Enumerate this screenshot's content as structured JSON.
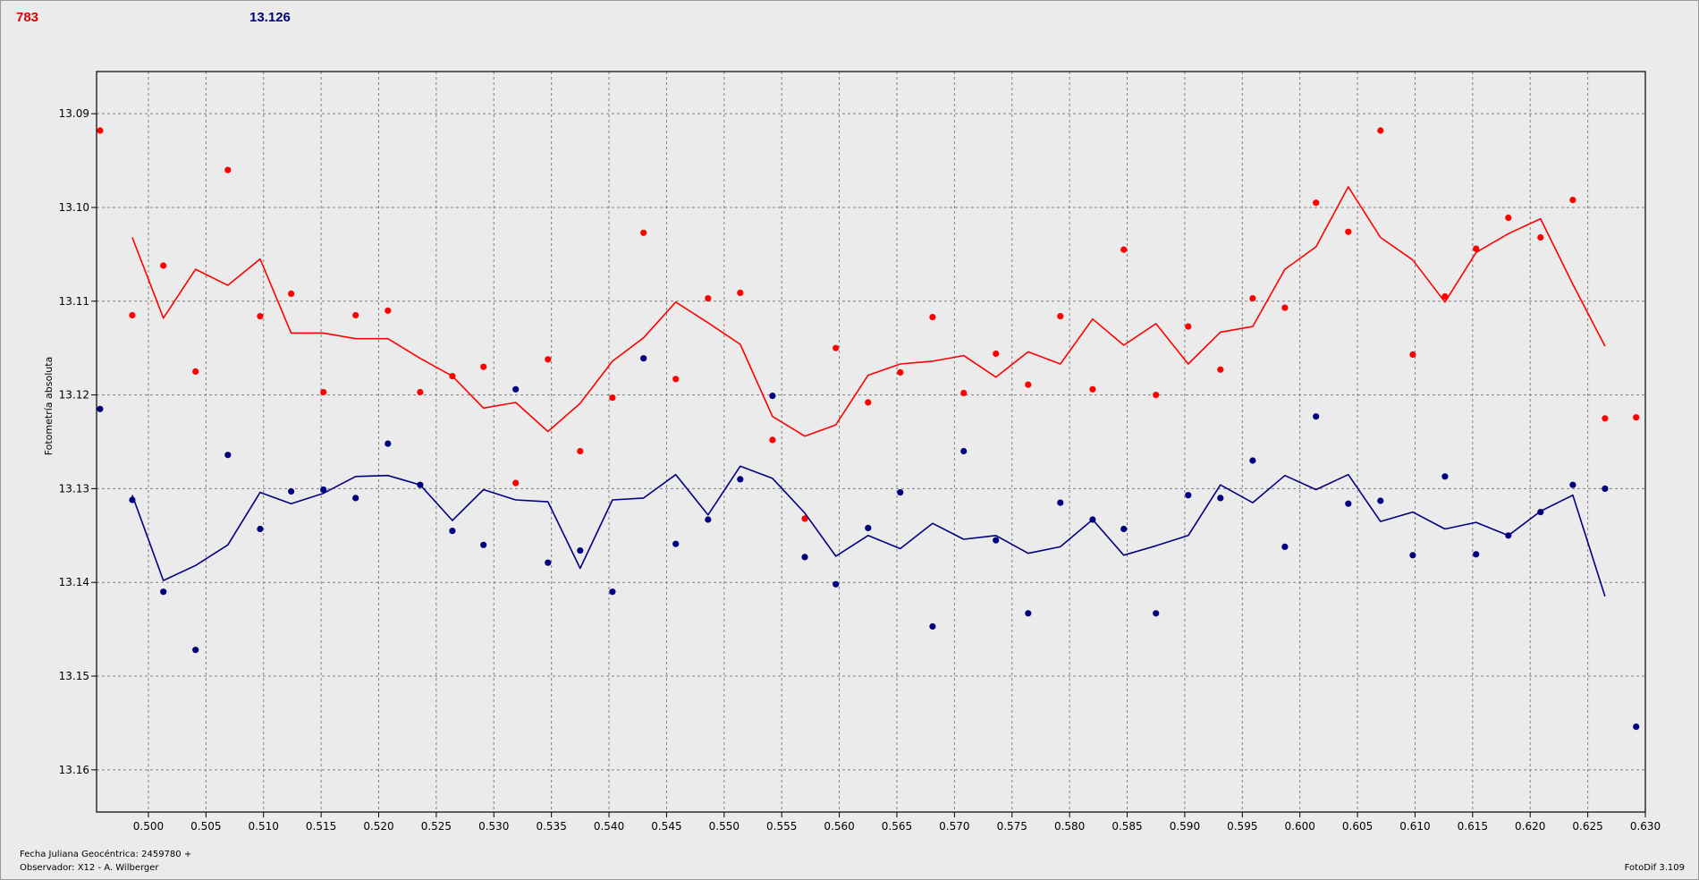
{
  "header": {
    "red_value": "783",
    "blue_value": "13.126"
  },
  "footer": {
    "jd_label": "Fecha Juliana Geocéntrica: 2459780 +",
    "observer": "Observador: X12 - A. Wilberger",
    "version": "FotoDif 3.109"
  },
  "colors": {
    "red": "#ff0000",
    "blue": "#000080",
    "grid": "#808080",
    "plot_bg": "#ebebeb"
  },
  "chart_data": {
    "type": "scatter",
    "ylabel": "Fotometría absoluta",
    "xlim": [
      0.4955,
      0.63
    ],
    "ylim": [
      13.1645,
      13.0855
    ],
    "y_inverted": true,
    "grid": true,
    "x_ticks": [
      "0.500",
      "0.505",
      "0.510",
      "0.515",
      "0.520",
      "0.525",
      "0.530",
      "0.535",
      "0.540",
      "0.545",
      "0.550",
      "0.555",
      "0.560",
      "0.565",
      "0.570",
      "0.575",
      "0.580",
      "0.585",
      "0.590",
      "0.595",
      "0.600",
      "0.605",
      "0.610",
      "0.615",
      "0.620",
      "0.625",
      "0.630"
    ],
    "y_ticks": [
      "13.09",
      "13.10",
      "13.11",
      "13.12",
      "13.13",
      "13.14",
      "13.15",
      "13.16"
    ],
    "series": [
      {
        "color": "#ff0000",
        "points": [
          [
            0.4958,
            13.0918
          ],
          [
            0.4986,
            13.1115
          ],
          [
            0.5013,
            13.1062
          ],
          [
            0.5041,
            13.1175
          ],
          [
            0.5069,
            13.096
          ],
          [
            0.5097,
            13.1116
          ],
          [
            0.5124,
            13.1092
          ],
          [
            0.5152,
            13.1197
          ],
          [
            0.518,
            13.1115
          ],
          [
            0.5208,
            13.111
          ],
          [
            0.5236,
            13.1197
          ],
          [
            0.5264,
            13.118
          ],
          [
            0.5291,
            13.117
          ],
          [
            0.5319,
            13.1294
          ],
          [
            0.5347,
            13.1162
          ],
          [
            0.5375,
            13.126
          ],
          [
            0.5403,
            13.1203
          ],
          [
            0.543,
            13.1027
          ],
          [
            0.5458,
            13.1183
          ],
          [
            0.5486,
            13.1097
          ],
          [
            0.5514,
            13.1091
          ],
          [
            0.5542,
            13.1248
          ],
          [
            0.557,
            13.1332
          ],
          [
            0.5597,
            13.115
          ],
          [
            0.5625,
            13.1208
          ],
          [
            0.5653,
            13.1176
          ],
          [
            0.5681,
            13.1117
          ],
          [
            0.5708,
            13.1198
          ],
          [
            0.5736,
            13.1156
          ],
          [
            0.5764,
            13.1189
          ],
          [
            0.5792,
            13.1116
          ],
          [
            0.582,
            13.1194
          ],
          [
            0.5847,
            13.1045
          ],
          [
            0.5875,
            13.12
          ],
          [
            0.5903,
            13.1127
          ],
          [
            0.5931,
            13.1173
          ],
          [
            0.5959,
            13.1097
          ],
          [
            0.5987,
            13.1107
          ],
          [
            0.6014,
            13.0995
          ],
          [
            0.6042,
            13.1026
          ],
          [
            0.607,
            13.0918
          ],
          [
            0.6098,
            13.1157
          ],
          [
            0.6126,
            13.1095
          ],
          [
            0.6153,
            13.1044
          ],
          [
            0.6181,
            13.1011
          ],
          [
            0.6209,
            13.1032
          ],
          [
            0.6237,
            13.0992
          ],
          [
            0.6265,
            13.1225
          ],
          [
            0.6292,
            13.1224
          ]
        ],
        "line": [
          [
            0.4986,
            13.1032
          ],
          [
            0.5013,
            13.1118
          ],
          [
            0.5041,
            13.1066
          ],
          [
            0.5069,
            13.1083
          ],
          [
            0.5097,
            13.1055
          ],
          [
            0.5124,
            13.1134
          ],
          [
            0.5152,
            13.1134
          ],
          [
            0.518,
            13.114
          ],
          [
            0.5208,
            13.114
          ],
          [
            0.5236,
            13.1161
          ],
          [
            0.5264,
            13.118
          ],
          [
            0.5291,
            13.1214
          ],
          [
            0.5319,
            13.1208
          ],
          [
            0.5347,
            13.1239
          ],
          [
            0.5375,
            13.1209
          ],
          [
            0.5403,
            13.1164
          ],
          [
            0.543,
            13.1139
          ],
          [
            0.5458,
            13.1101
          ],
          [
            0.5486,
            13.1123
          ],
          [
            0.5514,
            13.1146
          ],
          [
            0.5542,
            13.1223
          ],
          [
            0.557,
            13.1244
          ],
          [
            0.5597,
            13.1232
          ],
          [
            0.5625,
            13.1179
          ],
          [
            0.5653,
            13.1167
          ],
          [
            0.5681,
            13.1164
          ],
          [
            0.5708,
            13.1158
          ],
          [
            0.5736,
            13.1181
          ],
          [
            0.5764,
            13.1154
          ],
          [
            0.5792,
            13.1167
          ],
          [
            0.582,
            13.1119
          ],
          [
            0.5847,
            13.1147
          ],
          [
            0.5875,
            13.1124
          ],
          [
            0.5903,
            13.1167
          ],
          [
            0.5931,
            13.1133
          ],
          [
            0.5959,
            13.1127
          ],
          [
            0.5987,
            13.1066
          ],
          [
            0.6014,
            13.1042
          ],
          [
            0.6042,
            13.0978
          ],
          [
            0.607,
            13.1032
          ],
          [
            0.6098,
            13.1056
          ],
          [
            0.6126,
            13.1101
          ],
          [
            0.6153,
            13.1048
          ],
          [
            0.6181,
            13.1028
          ],
          [
            0.6209,
            13.1012
          ],
          [
            0.6237,
            13.1082
          ],
          [
            0.6265,
            13.1148
          ]
        ]
      },
      {
        "color": "#000080",
        "points": [
          [
            0.4958,
            13.1215
          ],
          [
            0.4986,
            13.1312
          ],
          [
            0.5013,
            13.141
          ],
          [
            0.5041,
            13.1472
          ],
          [
            0.5069,
            13.1264
          ],
          [
            0.5097,
            13.1343
          ],
          [
            0.5124,
            13.1303
          ],
          [
            0.5152,
            13.1301
          ],
          [
            0.518,
            13.131
          ],
          [
            0.5208,
            13.1252
          ],
          [
            0.5236,
            13.1296
          ],
          [
            0.5264,
            13.1345
          ],
          [
            0.5291,
            13.136
          ],
          [
            0.5319,
            13.1194
          ],
          [
            0.5347,
            13.1379
          ],
          [
            0.5375,
            13.1366
          ],
          [
            0.5403,
            13.141
          ],
          [
            0.543,
            13.1161
          ],
          [
            0.5458,
            13.1359
          ],
          [
            0.5486,
            13.1333
          ],
          [
            0.5514,
            13.129
          ],
          [
            0.5542,
            13.1201
          ],
          [
            0.557,
            13.1373
          ],
          [
            0.5597,
            13.1402
          ],
          [
            0.5625,
            13.1342
          ],
          [
            0.5653,
            13.1304
          ],
          [
            0.5681,
            13.1447
          ],
          [
            0.5708,
            13.126
          ],
          [
            0.5736,
            13.1355
          ],
          [
            0.5764,
            13.1433
          ],
          [
            0.5792,
            13.1315
          ],
          [
            0.582,
            13.1333
          ],
          [
            0.5847,
            13.1343
          ],
          [
            0.5875,
            13.1433
          ],
          [
            0.5903,
            13.1307
          ],
          [
            0.5931,
            13.131
          ],
          [
            0.5959,
            13.127
          ],
          [
            0.5987,
            13.1362
          ],
          [
            0.6014,
            13.1223
          ],
          [
            0.6042,
            13.1316
          ],
          [
            0.607,
            13.1313
          ],
          [
            0.6098,
            13.1371
          ],
          [
            0.6126,
            13.1287
          ],
          [
            0.6153,
            13.137
          ],
          [
            0.6181,
            13.135
          ],
          [
            0.6209,
            13.1325
          ],
          [
            0.6237,
            13.1296
          ],
          [
            0.6265,
            13.13
          ],
          [
            0.6292,
            13.1554
          ]
        ],
        "line": [
          [
            0.4986,
            13.1307
          ],
          [
            0.5013,
            13.1398
          ],
          [
            0.5041,
            13.1382
          ],
          [
            0.5069,
            13.136
          ],
          [
            0.5097,
            13.1304
          ],
          [
            0.5124,
            13.1316
          ],
          [
            0.5152,
            13.1305
          ],
          [
            0.518,
            13.1287
          ],
          [
            0.5208,
            13.1286
          ],
          [
            0.5236,
            13.1296
          ],
          [
            0.5264,
            13.1334
          ],
          [
            0.5291,
            13.1301
          ],
          [
            0.5319,
            13.1312
          ],
          [
            0.5347,
            13.1314
          ],
          [
            0.5375,
            13.1385
          ],
          [
            0.5403,
            13.1312
          ],
          [
            0.543,
            13.131
          ],
          [
            0.5458,
            13.1285
          ],
          [
            0.5486,
            13.1328
          ],
          [
            0.5514,
            13.1276
          ],
          [
            0.5542,
            13.1289
          ],
          [
            0.557,
            13.1326
          ],
          [
            0.5597,
            13.1372
          ],
          [
            0.5625,
            13.135
          ],
          [
            0.5653,
            13.1364
          ],
          [
            0.5681,
            13.1337
          ],
          [
            0.5708,
            13.1354
          ],
          [
            0.5736,
            13.135
          ],
          [
            0.5764,
            13.1369
          ],
          [
            0.5792,
            13.1362
          ],
          [
            0.582,
            13.1333
          ],
          [
            0.5847,
            13.1371
          ],
          [
            0.5875,
            13.1361
          ],
          [
            0.5903,
            13.135
          ],
          [
            0.5931,
            13.1296
          ],
          [
            0.5959,
            13.1315
          ],
          [
            0.5987,
            13.1286
          ],
          [
            0.6014,
            13.1301
          ],
          [
            0.6042,
            13.1285
          ],
          [
            0.607,
            13.1335
          ],
          [
            0.6098,
            13.1325
          ],
          [
            0.6126,
            13.1343
          ],
          [
            0.6153,
            13.1336
          ],
          [
            0.6181,
            13.135
          ],
          [
            0.6209,
            13.1324
          ],
          [
            0.6237,
            13.1307
          ],
          [
            0.6265,
            13.1415
          ]
        ]
      }
    ]
  }
}
